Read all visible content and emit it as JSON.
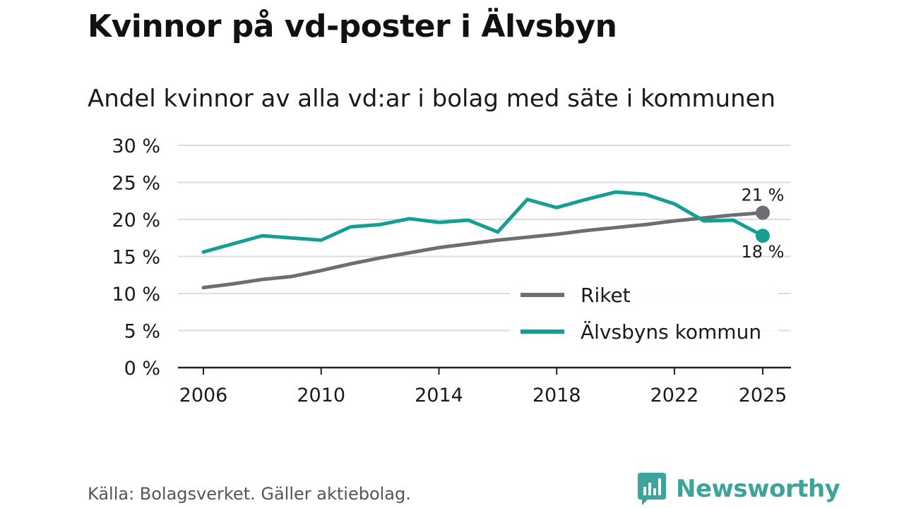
{
  "header": {
    "title": "Kvinnor på vd-poster i Älvsbyn",
    "subtitle": "Andel kvinnor av alla vd:ar i bolag med säte i kommunen"
  },
  "chart_data": {
    "type": "line",
    "title": "Kvinnor på vd-poster i Älvsbyn",
    "subtitle": "Andel kvinnor av alla vd:ar i bolag med säte i kommunen",
    "xlabel": "",
    "ylabel": "",
    "x": [
      2006,
      2007,
      2008,
      2009,
      2010,
      2011,
      2012,
      2013,
      2014,
      2015,
      2016,
      2017,
      2018,
      2019,
      2020,
      2021,
      2022,
      2023,
      2024,
      2025
    ],
    "xticks": [
      "2006",
      "2010",
      "2014",
      "2018",
      "2022",
      "2025"
    ],
    "ylim": [
      0,
      30
    ],
    "yticks": [
      "0 %",
      "5 %",
      "10 %",
      "15 %",
      "20 %",
      "25 %",
      "30 %"
    ],
    "grid": true,
    "legend_position": "bottom-right",
    "series": [
      {
        "name": "Riket",
        "color": "#6e6d72",
        "values": [
          10.8,
          11.3,
          11.9,
          12.3,
          13.1,
          14.0,
          14.8,
          15.5,
          16.2,
          16.7,
          17.2,
          17.6,
          18.0,
          18.5,
          18.9,
          19.3,
          19.8,
          20.2,
          20.6,
          20.9
        ],
        "end_label": "21 %"
      },
      {
        "name": "Älvsbyns kommun",
        "color": "#149e94",
        "values": [
          15.6,
          16.7,
          17.8,
          17.5,
          17.2,
          19.0,
          19.3,
          20.1,
          19.6,
          19.9,
          18.3,
          22.7,
          21.6,
          22.7,
          23.7,
          23.4,
          22.1,
          19.8,
          19.9,
          17.8
        ],
        "end_label": "18 %"
      }
    ]
  },
  "footer": {
    "source": "Källa: Bolagsverket. Gäller aktiebolag.",
    "brand": "Newsworthy",
    "brand_color": "#3da49b"
  }
}
